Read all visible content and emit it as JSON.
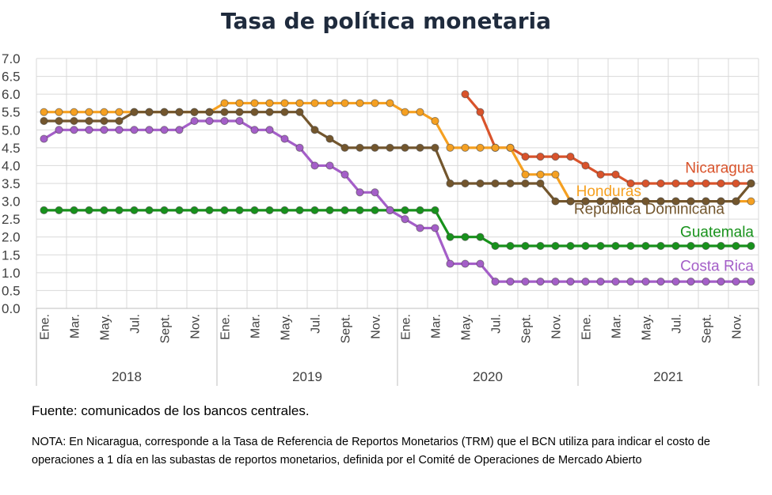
{
  "chart_data": {
    "type": "line",
    "title": "Tasa de política monetaria",
    "xlabel": "",
    "ylabel": "",
    "ylim": [
      0,
      7
    ],
    "y_ticks": [
      "0.0",
      "0.5",
      "1.0",
      "1.5",
      "2.0",
      "2.5",
      "3.0",
      "3.5",
      "4.0",
      "4.5",
      "5.0",
      "5.5",
      "6.0",
      "6.5",
      "7.0"
    ],
    "x_tick_labels": [
      "Ene.",
      "Mar.",
      "May.",
      "Jul.",
      "Sept.",
      "Nov.",
      "Ene.",
      "Mar.",
      "May.",
      "Jul.",
      "Sept.",
      "Nov.",
      "Ene.",
      "Mar.",
      "May.",
      "Jul.",
      "Sept.",
      "Nov.",
      "Ene.",
      "Mar.",
      "May.",
      "Jul.",
      "Sept.",
      "Nov."
    ],
    "years": [
      "2018",
      "2019",
      "2020",
      "2021"
    ],
    "grid": true,
    "legend": "inline labels at right end of series",
    "series": [
      {
        "name": "Nicaragua",
        "color": "#d9532b",
        "values": [
          null,
          null,
          null,
          null,
          null,
          null,
          null,
          null,
          null,
          null,
          null,
          null,
          null,
          null,
          null,
          null,
          null,
          null,
          null,
          null,
          null,
          null,
          null,
          null,
          null,
          null,
          null,
          null,
          6.0,
          5.5,
          4.5,
          4.5,
          4.25,
          4.25,
          4.25,
          4.25,
          4.0,
          3.75,
          3.75,
          3.5,
          3.5,
          3.5,
          3.5,
          3.5,
          3.5,
          3.5,
          3.5,
          3.5
        ]
      },
      {
        "name": "Honduras",
        "color": "#f5a021",
        "values": [
          5.5,
          5.5,
          5.5,
          5.5,
          5.5,
          5.5,
          5.5,
          5.5,
          5.5,
          5.5,
          5.5,
          5.5,
          5.75,
          5.75,
          5.75,
          5.75,
          5.75,
          5.75,
          5.75,
          5.75,
          5.75,
          5.75,
          5.75,
          5.75,
          5.5,
          5.5,
          5.25,
          4.5,
          4.5,
          4.5,
          4.5,
          4.5,
          3.75,
          3.75,
          3.75,
          3.0,
          3.0,
          3.0,
          3.0,
          3.0,
          3.0,
          3.0,
          3.0,
          3.0,
          3.0,
          3.0,
          3.0,
          3.0
        ]
      },
      {
        "name": "República Dominicana",
        "color": "#73562d",
        "values": [
          5.25,
          5.25,
          5.25,
          5.25,
          5.25,
          5.25,
          5.5,
          5.5,
          5.5,
          5.5,
          5.5,
          5.5,
          5.5,
          5.5,
          5.5,
          5.5,
          5.5,
          5.5,
          5.0,
          4.75,
          4.5,
          4.5,
          4.5,
          4.5,
          4.5,
          4.5,
          4.5,
          3.5,
          3.5,
          3.5,
          3.5,
          3.5,
          3.5,
          3.5,
          3.0,
          3.0,
          3.0,
          3.0,
          3.0,
          3.0,
          3.0,
          3.0,
          3.0,
          3.0,
          3.0,
          3.0,
          3.0,
          3.5
        ]
      },
      {
        "name": "Guatemala",
        "color": "#17921b",
        "values": [
          2.75,
          2.75,
          2.75,
          2.75,
          2.75,
          2.75,
          2.75,
          2.75,
          2.75,
          2.75,
          2.75,
          2.75,
          2.75,
          2.75,
          2.75,
          2.75,
          2.75,
          2.75,
          2.75,
          2.75,
          2.75,
          2.75,
          2.75,
          2.75,
          2.75,
          2.75,
          2.75,
          2.0,
          2.0,
          2.0,
          1.75,
          1.75,
          1.75,
          1.75,
          1.75,
          1.75,
          1.75,
          1.75,
          1.75,
          1.75,
          1.75,
          1.75,
          1.75,
          1.75,
          1.75,
          1.75,
          1.75,
          1.75
        ]
      },
      {
        "name": "Costa Rica",
        "color": "#a45ec8",
        "values": [
          4.75,
          5.0,
          5.0,
          5.0,
          5.0,
          5.0,
          5.0,
          5.0,
          5.0,
          5.0,
          5.25,
          5.25,
          5.25,
          5.25,
          5.0,
          5.0,
          4.75,
          4.5,
          4.0,
          4.0,
          3.75,
          3.25,
          3.25,
          2.75,
          2.5,
          2.25,
          2.25,
          1.25,
          1.25,
          1.25,
          0.75,
          0.75,
          0.75,
          0.75,
          0.75,
          0.75,
          0.75,
          0.75,
          0.75,
          0.75,
          0.75,
          0.75,
          0.75,
          0.75,
          0.75,
          0.75,
          0.75,
          0.75
        ]
      }
    ]
  },
  "source_text": "Fuente: comunicados de los bancos centrales.",
  "note_text": "NOTA: En Nicaragua, corresponde a la Tasa de Referencia de Reportos Monetarios (TRM) que el BCN utiliza para indicar el costo de operaciones a 1 día en las subastas de reportos monetarios, definida por el Comité de Operaciones de Mercado Abierto"
}
